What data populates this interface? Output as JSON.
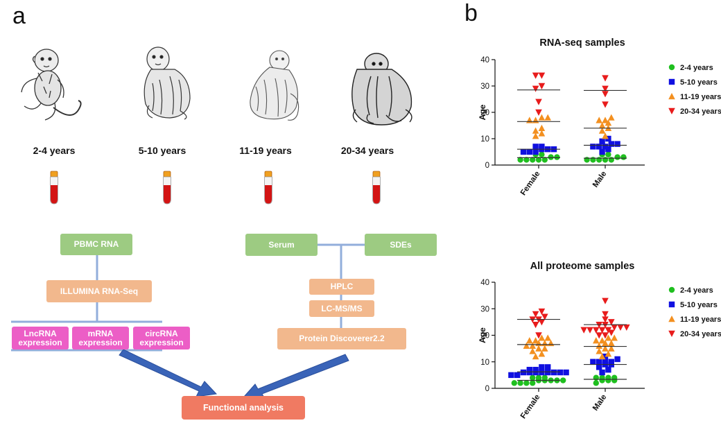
{
  "panel_a": {
    "label": "a",
    "age_groups": [
      "2-4 years",
      "5-10 years",
      "11-19 years",
      "20-34 years"
    ],
    "flow_left": {
      "source": "PBMC RNA",
      "method": "ILLUMINA RNA-Seq",
      "outputs": [
        "LncRNA expression",
        "mRNA expression",
        "circRNA expression"
      ]
    },
    "flow_right": {
      "sources": [
        "Serum",
        "SDEs"
      ],
      "steps": [
        "HPLC",
        "LC-MS/MS",
        "Protein Discoverer2.2"
      ]
    },
    "final": "Functional analysis"
  },
  "panel_b": {
    "label": "b"
  },
  "chart_data": [
    {
      "type": "scatter",
      "title": "RNA-seq samples",
      "ylabel": "Age",
      "categories": [
        "Female",
        "Male"
      ],
      "ylim": [
        0,
        40
      ],
      "yticks": [
        0,
        10,
        20,
        30,
        40
      ],
      "legend": [
        "2-4 years",
        "5-10 years",
        "11-19 years",
        "20-34 years"
      ],
      "legend_placement": "right",
      "colors": [
        "#1fbf1f",
        "#1010e0",
        "#f39020",
        "#e81c1c"
      ],
      "markers": [
        "circle",
        "square",
        "triangle-up",
        "triangle-down"
      ],
      "series": [
        {
          "name": "2-4 years",
          "Female": [
            2,
            2,
            2,
            2,
            2,
            3,
            3,
            4,
            4
          ],
          "Male": [
            2,
            2,
            2,
            2,
            2,
            3,
            3,
            4,
            4
          ]
        },
        {
          "name": "5-10 years",
          "Female": [
            5,
            5,
            5,
            6,
            6,
            6,
            7,
            7
          ],
          "Male": [
            5,
            6,
            7,
            7,
            7,
            8,
            8,
            9,
            10
          ]
        },
        {
          "name": "11-19 years",
          "Female": [
            11,
            12,
            13,
            14,
            17,
            17,
            18,
            18
          ],
          "Male": [
            11,
            13,
            14,
            15,
            16,
            17,
            17,
            18
          ]
        },
        {
          "name": "20-34 years",
          "Female": [
            20,
            24,
            29,
            30,
            34,
            34
          ],
          "Male": [
            23,
            27,
            29,
            33
          ]
        }
      ],
      "mean_lines": {
        "2-4 years": [
          2.8,
          2.6
        ],
        "5-10 years": [
          6.0,
          7.5
        ],
        "11-19 years": [
          16.5,
          14.0
        ],
        "20-34 years": [
          28.5,
          28.3
        ]
      }
    },
    {
      "type": "scatter",
      "title": "All proteome samples",
      "ylabel": "Age",
      "categories": [
        "Female",
        "Male"
      ],
      "ylim": [
        0,
        40
      ],
      "yticks": [
        0,
        10,
        20,
        30,
        40
      ],
      "legend": [
        "2-4 years",
        "5-10 years",
        "11-19 years",
        "20-34 years"
      ],
      "legend_placement": "right",
      "colors": [
        "#1fbf1f",
        "#1010e0",
        "#f39020",
        "#e81c1c"
      ],
      "markers": [
        "circle",
        "square",
        "triangle-up",
        "triangle-down"
      ],
      "series": [
        {
          "name": "2-4 years",
          "Female": [
            2,
            2,
            2,
            2,
            3,
            3,
            3,
            3,
            3,
            4,
            4,
            4
          ],
          "Male": [
            2,
            3,
            3,
            3,
            4,
            4,
            4,
            4
          ]
        },
        {
          "name": "5-10 years",
          "Female": [
            5,
            5,
            6,
            6,
            6,
            6,
            6,
            6,
            6,
            6,
            7,
            7,
            8,
            8
          ],
          "Male": [
            6,
            7,
            8,
            9,
            9,
            10,
            10,
            10,
            10,
            11,
            12
          ]
        },
        {
          "name": "11-19 years",
          "Female": [
            12,
            13,
            14,
            15,
            15,
            16,
            16,
            17,
            17,
            17,
            18,
            18,
            19,
            19
          ],
          "Male": [
            12,
            13,
            14,
            15,
            15,
            16,
            17,
            17,
            18,
            18,
            19,
            19
          ]
        },
        {
          "name": "20-34 years",
          "Female": [
            20,
            24,
            25,
            26,
            26,
            27,
            28,
            29
          ],
          "Male": [
            20,
            20,
            21,
            22,
            22,
            22,
            22,
            22,
            23,
            23,
            23,
            24,
            24,
            25,
            26,
            28,
            33
          ]
        }
      ],
      "mean_lines": {
        "2-4 years": [
          3.0,
          3.4
        ],
        "5-10 years": [
          6.2,
          9.0
        ],
        "11-19 years": [
          16.5,
          15.8
        ],
        "20-34 years": [
          26.0,
          24.0
        ]
      }
    }
  ]
}
